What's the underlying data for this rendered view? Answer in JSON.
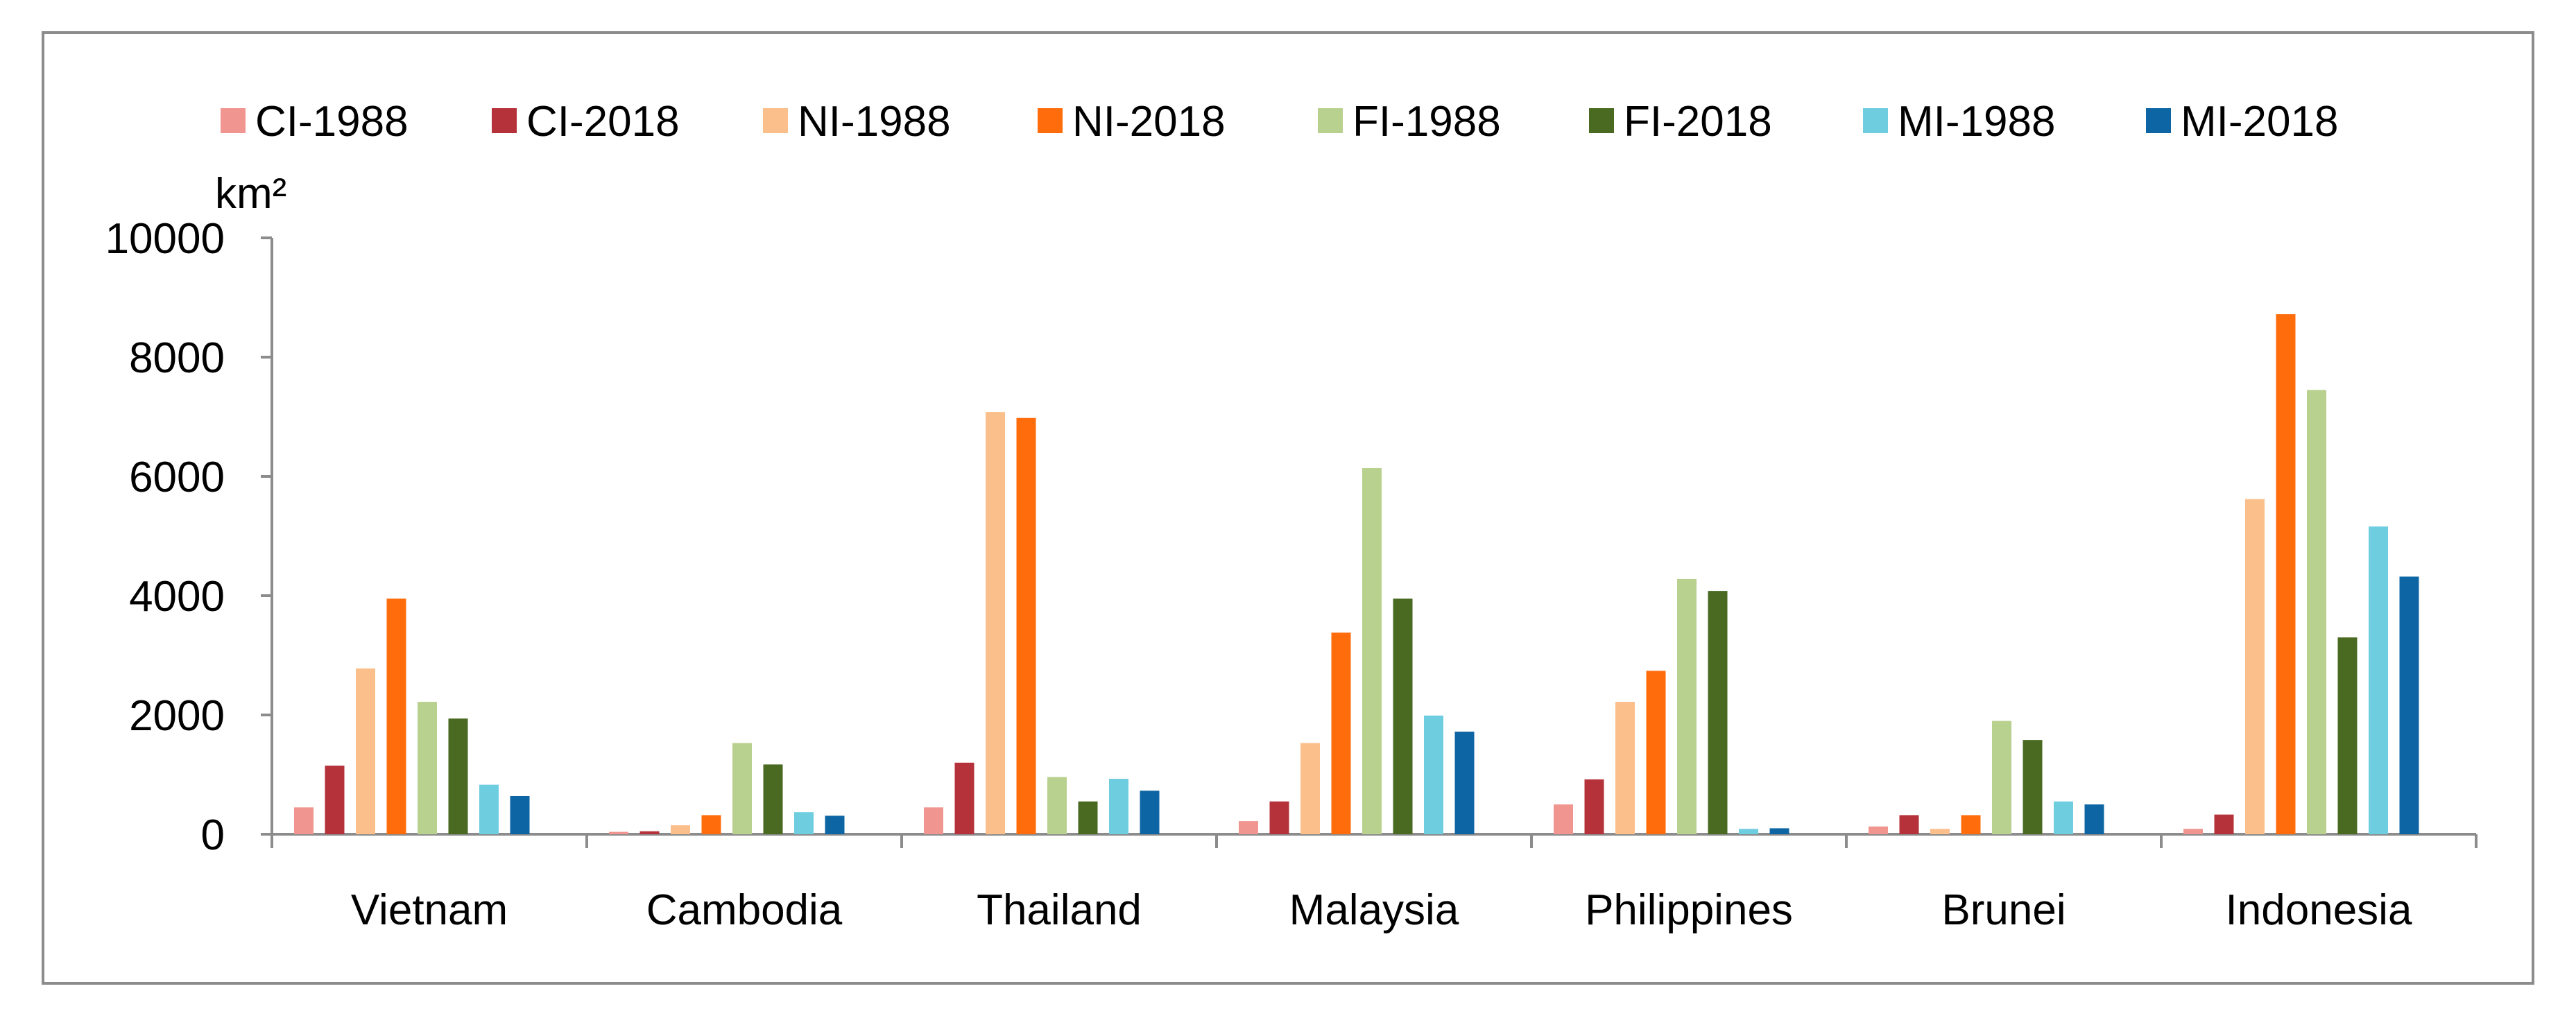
{
  "chart_data": {
    "type": "bar",
    "title": "",
    "xlabel": "",
    "ylabel": "km²",
    "ylim": [
      0,
      10000
    ],
    "yticks": [
      "0",
      "2000",
      "4000",
      "6000",
      "8000",
      "10000"
    ],
    "grid": false,
    "legend_position": "top",
    "categories": [
      "Vietnam",
      "Cambodia",
      "Thailand",
      "Malaysia",
      "Philippines",
      "Brunei",
      "Indonesia"
    ],
    "series": [
      {
        "name": "CI-1988",
        "color": "#f0958f",
        "values": [
          450,
          40,
          450,
          220,
          500,
          130,
          90
        ]
      },
      {
        "name": "CI-2018",
        "color": "#b5323b",
        "values": [
          1150,
          50,
          1200,
          550,
          920,
          320,
          330
        ]
      },
      {
        "name": "NI-1988",
        "color": "#fbbf8c",
        "values": [
          2780,
          150,
          7080,
          1530,
          2220,
          90,
          5620
        ]
      },
      {
        "name": "NI-2018",
        "color": "#ff6c0c",
        "values": [
          3950,
          320,
          6980,
          3380,
          2740,
          320,
          8720
        ]
      },
      {
        "name": "FI-1988",
        "color": "#b9d18f",
        "values": [
          2220,
          1530,
          960,
          6140,
          4280,
          1900,
          7450
        ]
      },
      {
        "name": "FI-2018",
        "color": "#4a6a22",
        "values": [
          1940,
          1170,
          550,
          3950,
          4080,
          1580,
          3300
        ]
      },
      {
        "name": "MI-1988",
        "color": "#6fcde0",
        "values": [
          830,
          370,
          930,
          1990,
          90,
          550,
          5160
        ]
      },
      {
        "name": "MI-2018",
        "color": "#0d66a3",
        "values": [
          640,
          310,
          730,
          1720,
          100,
          500,
          4320
        ]
      }
    ]
  }
}
